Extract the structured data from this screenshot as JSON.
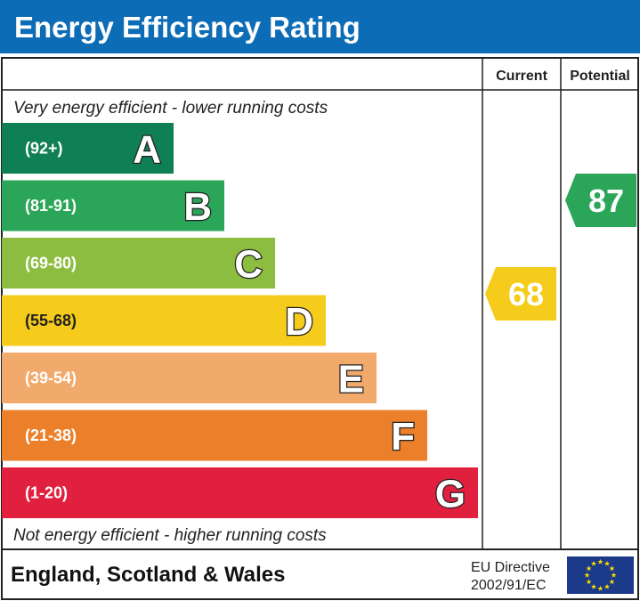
{
  "header": {
    "title": "Energy Efficiency Rating",
    "color": "#0d6cb6"
  },
  "columns": {
    "current": "Current",
    "potential": "Potential"
  },
  "notes": {
    "top": "Very energy efficient - lower running costs",
    "bottom": "Not energy efficient - higher running costs"
  },
  "footer": {
    "region": "England, Scotland & Wales",
    "directive_line1": "EU Directive",
    "directive_line2": "2002/91/EC",
    "flag": "eu-flag-icon"
  },
  "chart_data": {
    "type": "bar",
    "title": "Energy Efficiency Rating",
    "bands": [
      {
        "letter": "A",
        "range": "(92+)",
        "color": "#0f7f55"
      },
      {
        "letter": "B",
        "range": "(81-91)",
        "color": "#2ba557"
      },
      {
        "letter": "C",
        "range": "(69-80)",
        "color": "#8dbd40"
      },
      {
        "letter": "D",
        "range": "(55-68)",
        "color": "#f5cc1b"
      },
      {
        "letter": "E",
        "range": "(39-54)",
        "color": "#f2a96c"
      },
      {
        "letter": "F",
        "range": "(21-38)",
        "color": "#ec7f2a"
      },
      {
        "letter": "G",
        "range": "(1-20)",
        "color": "#e11f3f"
      }
    ],
    "current": {
      "value": "68",
      "band": "D",
      "color": "#f5cc1b"
    },
    "potential": {
      "value": "87",
      "band": "B",
      "color": "#2ba557"
    }
  }
}
